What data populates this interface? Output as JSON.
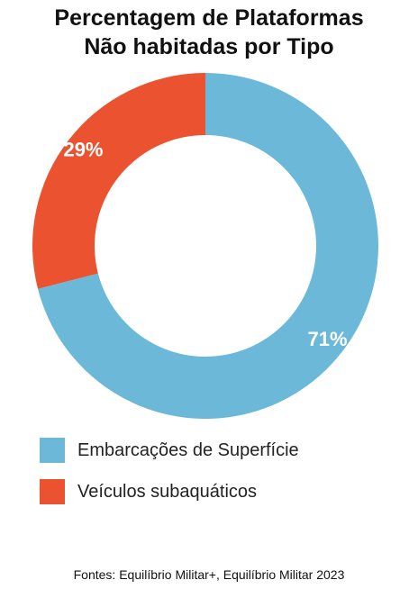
{
  "title_lines": [
    "Percentagem de Plataformas",
    "Não habitadas por Tipo"
  ],
  "source": "Fontes: Equilíbrio Militar+, Equilíbrio Militar 2023",
  "chart_data": {
    "type": "pie",
    "title": "Percentagem de Plataformas Não habitadas por Tipo",
    "donut": true,
    "unit": "%",
    "categories": [
      "Embarcações de Superfície",
      "Veículos subaquáticos"
    ],
    "values": [
      71,
      29
    ],
    "labels": [
      "71%",
      "29%"
    ],
    "colors": [
      "#6bb8d9",
      "#ea5230"
    ],
    "start": "12 o'clock",
    "direction": "clockwise",
    "legend_position": "bottom-left"
  }
}
